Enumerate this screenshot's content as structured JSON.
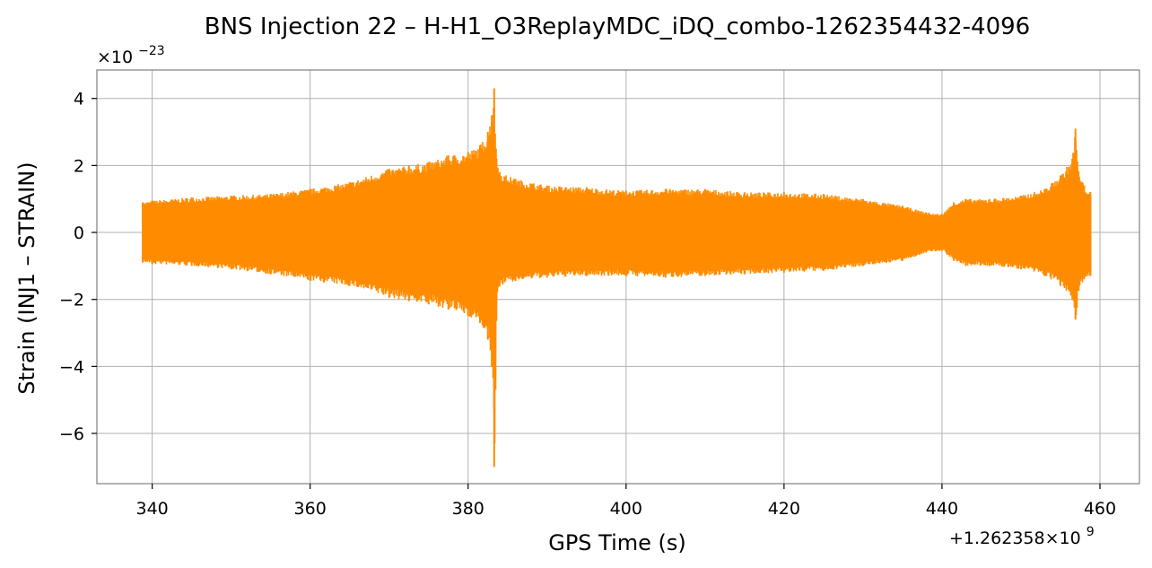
{
  "chart_data": {
    "type": "line",
    "title": "BNS Injection 22 – H-H1_O3ReplayMDC_iDQ_combo-1262354432-4096",
    "xlabel": "GPS Time (s)",
    "ylabel": "Strain (INJ1 – STRAIN)",
    "x_offset_label": "+1.262358×10",
    "x_offset_exponent": "9",
    "y_multiplier_label": "×10",
    "y_multiplier_exponent": "−23",
    "xlim": [
      333,
      465
    ],
    "ylim": [
      -7.5,
      4.85
    ],
    "x_ticks": [
      340,
      360,
      380,
      400,
      420,
      440,
      460
    ],
    "y_ticks": [
      -6,
      -4,
      -2,
      0,
      2,
      4
    ],
    "y_tick_labels": [
      "−6",
      "−4",
      "−2",
      "0",
      "2",
      "4"
    ],
    "grid": true,
    "color": "#ff8c00",
    "series": [
      {
        "x": [
          338.8,
          340,
          345,
          350,
          355,
          360,
          365,
          370,
          372.5,
          375,
          377.5,
          380,
          381.5,
          382.5,
          383.0,
          383.3,
          383.6,
          384,
          386,
          390,
          395,
          400,
          405,
          410,
          415,
          420,
          425,
          430,
          435,
          438,
          440,
          441.5,
          443,
          446,
          450,
          453,
          455,
          456.5,
          456.9,
          457.3,
          458,
          458.8
        ],
        "upper": [
          0.9,
          0.95,
          1.05,
          1.1,
          1.15,
          1.3,
          1.5,
          1.9,
          2.0,
          2.1,
          2.3,
          2.4,
          2.6,
          3.0,
          3.5,
          4.3,
          2.2,
          1.8,
          1.6,
          1.4,
          1.35,
          1.25,
          1.3,
          1.3,
          1.2,
          1.2,
          1.15,
          1.0,
          0.8,
          0.6,
          0.55,
          0.9,
          1.0,
          1.0,
          1.1,
          1.3,
          1.7,
          2.2,
          3.1,
          1.8,
          1.4,
          1.2
        ],
        "lower": [
          -0.9,
          -0.95,
          -1.0,
          -1.1,
          -1.25,
          -1.45,
          -1.6,
          -1.95,
          -2.05,
          -2.15,
          -2.3,
          -2.5,
          -2.7,
          -3.2,
          -4.0,
          -7.0,
          -2.0,
          -1.6,
          -1.45,
          -1.35,
          -1.3,
          -1.3,
          -1.35,
          -1.3,
          -1.25,
          -1.2,
          -1.15,
          -1.0,
          -0.85,
          -0.6,
          -0.55,
          -0.85,
          -1.0,
          -1.0,
          -1.1,
          -1.3,
          -1.6,
          -2.0,
          -2.6,
          -1.7,
          -1.4,
          -1.3
        ]
      }
    ]
  }
}
